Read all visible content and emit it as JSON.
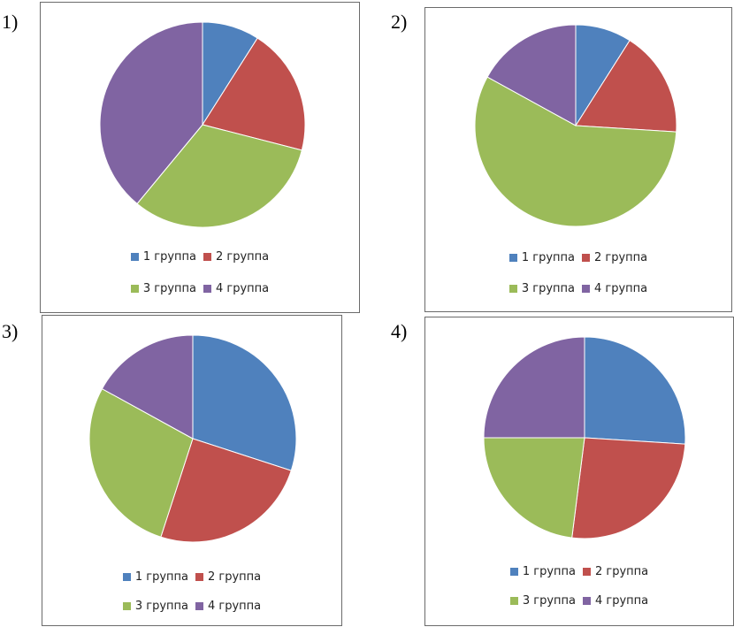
{
  "chart_data": [
    {
      "type": "pie",
      "number_label": "1)",
      "categories": [
        "1 группа",
        "2 группа",
        "3 группа",
        "4 группа"
      ],
      "values": [
        9,
        20,
        32,
        39
      ],
      "colors": [
        "#4F81BD",
        "#C0504D",
        "#9BBB59",
        "#8064A2"
      ],
      "legend_position": "bottom"
    },
    {
      "type": "pie",
      "number_label": "2)",
      "categories": [
        "1 группа",
        "2 группа",
        "3 группа",
        "4 группа"
      ],
      "values": [
        9,
        17,
        57,
        17
      ],
      "colors": [
        "#4F81BD",
        "#C0504D",
        "#9BBB59",
        "#8064A2"
      ],
      "legend_position": "bottom"
    },
    {
      "type": "pie",
      "number_label": "3)",
      "categories": [
        "1 группа",
        "2 группа",
        "3 группа",
        "4 группа"
      ],
      "values": [
        30,
        25,
        28,
        17
      ],
      "colors": [
        "#4F81BD",
        "#C0504D",
        "#9BBB59",
        "#8064A2"
      ],
      "legend_position": "bottom"
    },
    {
      "type": "pie",
      "number_label": "4)",
      "categories": [
        "1 группа",
        "2 группа",
        "3 группа",
        "4 группа"
      ],
      "values": [
        26,
        26,
        23,
        25
      ],
      "colors": [
        "#4F81BD",
        "#C0504D",
        "#9BBB59",
        "#8064A2"
      ],
      "legend_position": "bottom"
    }
  ]
}
